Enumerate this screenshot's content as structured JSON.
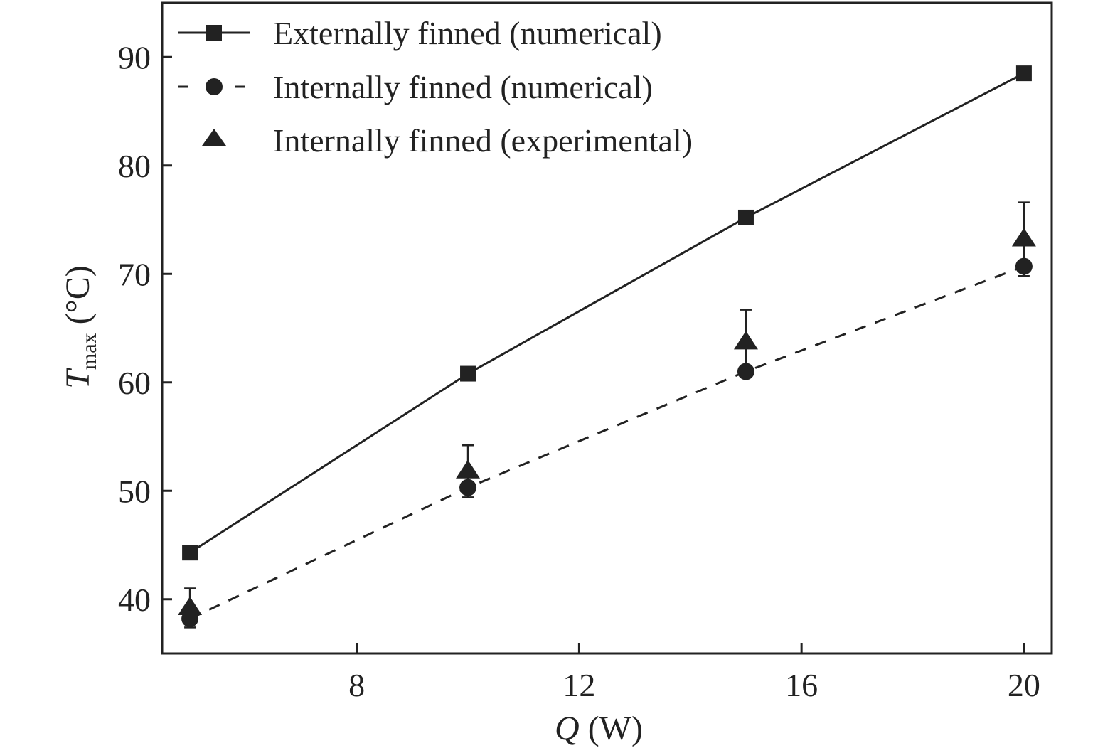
{
  "chart_data": {
    "type": "line",
    "title": "",
    "xlabel": {
      "symbol": "Q",
      "unit": " (W)"
    },
    "ylabel": {
      "symbol": "T",
      "subscript": "max",
      "unit": " (°C)"
    },
    "xlim": [
      4.5,
      20.5
    ],
    "ylim": [
      35,
      95
    ],
    "x_ticks": [
      8,
      12,
      16,
      20
    ],
    "x_tick_labels": [
      "8",
      "12",
      "16",
      "20"
    ],
    "y_ticks": [
      40,
      50,
      60,
      70,
      80,
      90
    ],
    "y_tick_labels": [
      "40",
      "50",
      "60",
      "70",
      "80",
      "90"
    ],
    "grid": false,
    "legend_position": "top-left",
    "series": [
      {
        "name": "Externally finned (numerical)",
        "line": "solid",
        "marker": "square",
        "x": [
          5,
          10,
          15,
          20
        ],
        "y": [
          44.3,
          60.8,
          75.2,
          88.5
        ]
      },
      {
        "name": "Internally finned (numerical)",
        "line": "dashed",
        "marker": "circle",
        "x": [
          5,
          10,
          15,
          20
        ],
        "y": [
          38.2,
          50.3,
          61.0,
          70.7
        ]
      },
      {
        "name": "Internally finned (experimental)",
        "line": "none",
        "marker": "triangle",
        "x": [
          5,
          10,
          15,
          20
        ],
        "y": [
          39.2,
          51.8,
          63.7,
          73.2
        ],
        "error": [
          1.8,
          2.4,
          3.0,
          3.4
        ]
      }
    ]
  }
}
